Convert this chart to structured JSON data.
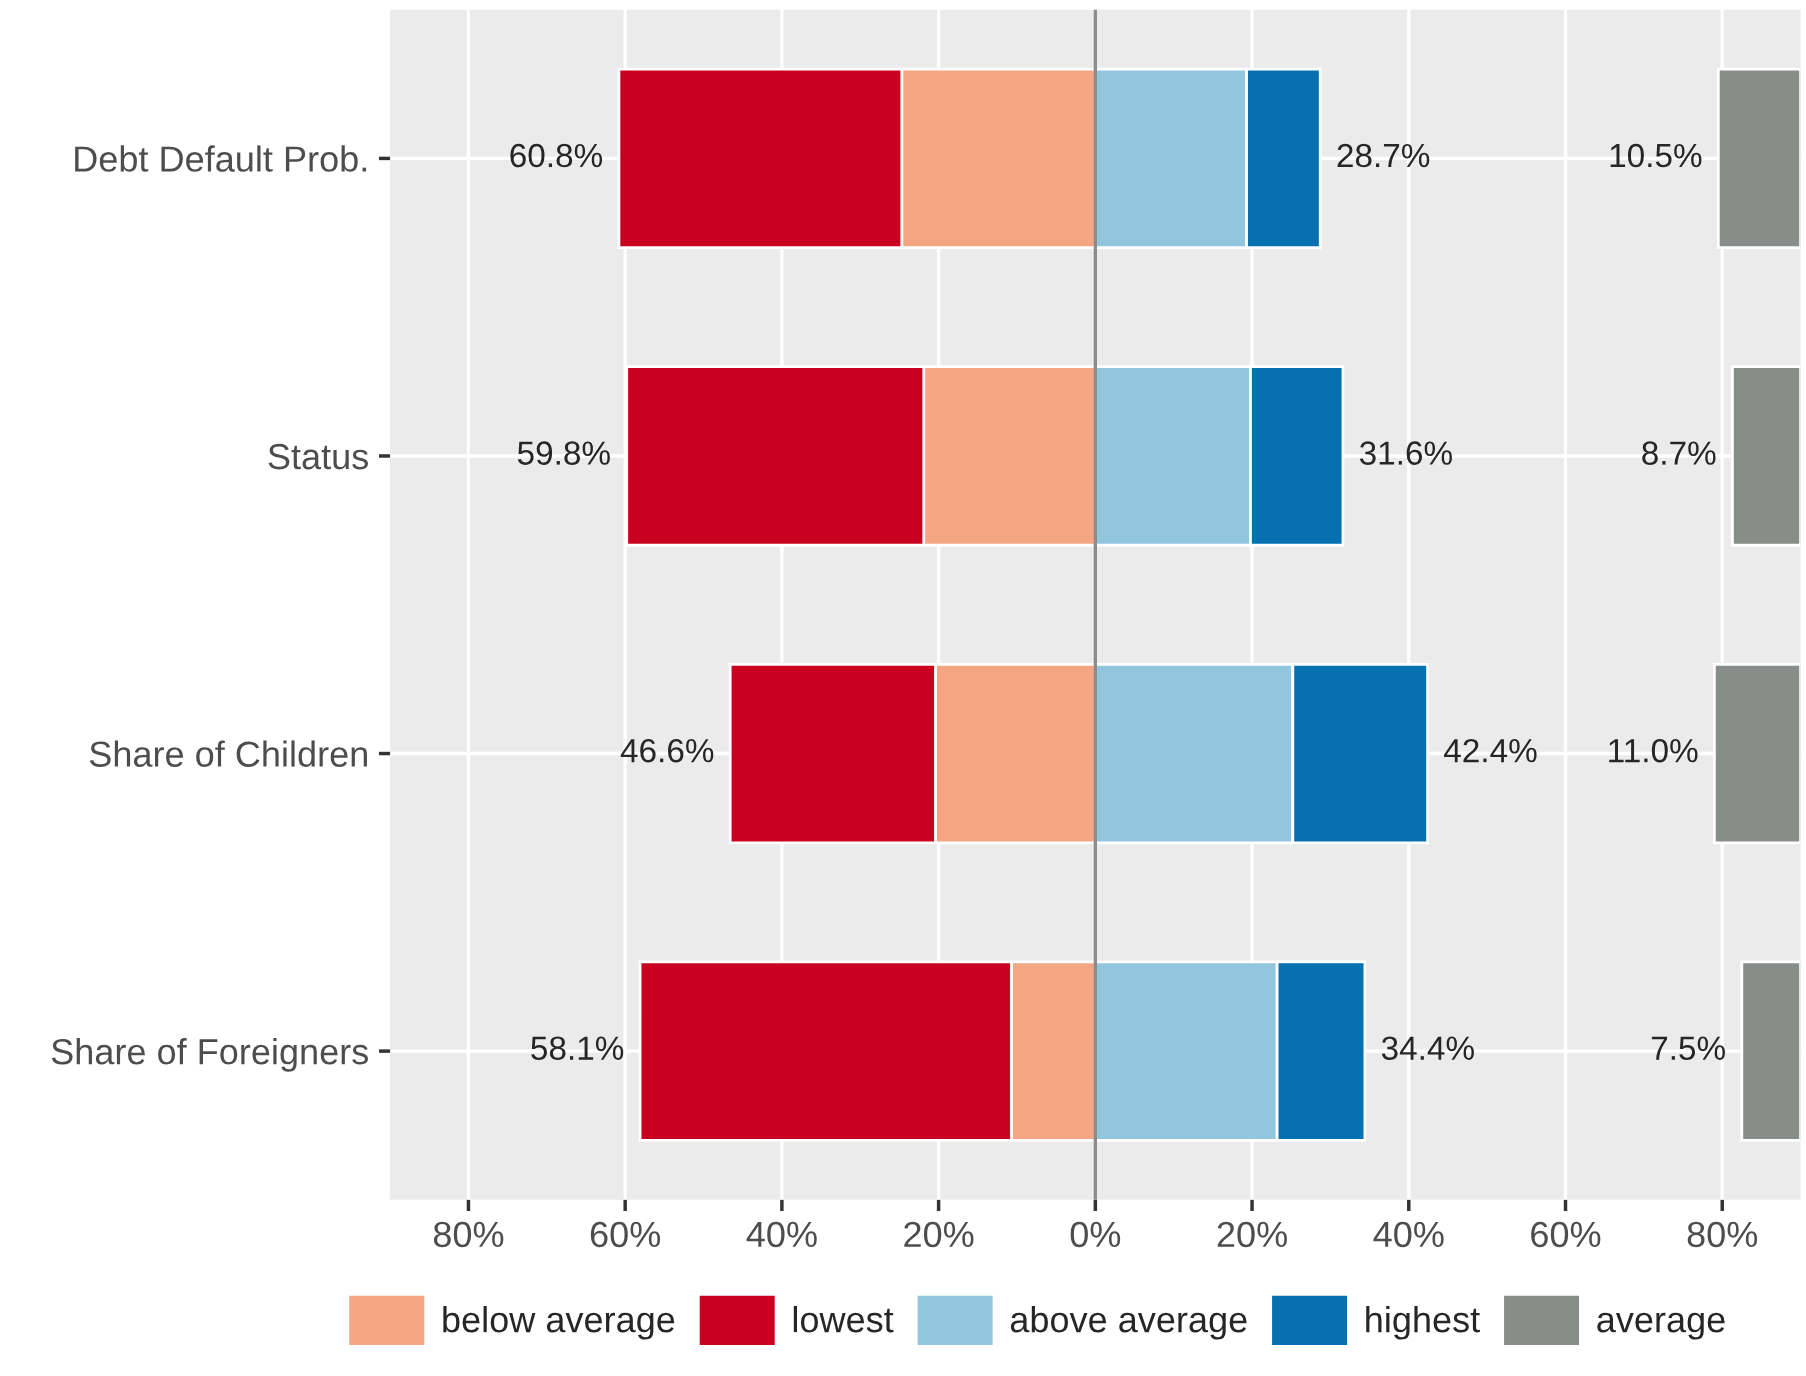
{
  "chart_data": [
    {
      "type": "bar",
      "orientation": "horizontal",
      "stacked": true,
      "categories": [
        "Debt Default Prob.",
        "Status",
        "Share of Children",
        "Share of Foreigners"
      ],
      "series": [
        {
          "name": "below average",
          "color": "#f4a582",
          "values": [
            -24.7,
            -21.9,
            -20.4,
            -10.7
          ]
        },
        {
          "name": "lowest",
          "color": "#ca0020",
          "values": [
            -36.1,
            -37.9,
            -26.2,
            -47.4
          ]
        },
        {
          "name": "above average",
          "color": "#92c5de",
          "values": [
            19.3,
            19.8,
            25.2,
            23.2
          ]
        },
        {
          "name": "highest",
          "color": "#0571b0",
          "values": [
            9.4,
            11.8,
            17.2,
            11.2
          ]
        }
      ],
      "xlim": [
        -90,
        90
      ],
      "xticks": [
        {
          "value": -80,
          "label": "80%"
        },
        {
          "value": -60,
          "label": "60%"
        },
        {
          "value": -40,
          "label": "40%"
        },
        {
          "value": -20,
          "label": "20%"
        },
        {
          "value": 0,
          "label": "0%"
        },
        {
          "value": 20,
          "label": "20%"
        },
        {
          "value": 40,
          "label": "40%"
        },
        {
          "value": 60,
          "label": "60%"
        },
        {
          "value": 80,
          "label": "80%"
        }
      ],
      "ref_lines": [
        {
          "axis": "x",
          "value": 0,
          "color": "#8c8c8c"
        }
      ],
      "annotations": [
        {
          "text": "60.8%",
          "x": -60.8,
          "y": "Debt Default Prob."
        },
        {
          "text": "59.8%",
          "x": -59.8,
          "y": "Status"
        },
        {
          "text": "46.6%",
          "x": -46.6,
          "y": "Share of Children"
        },
        {
          "text": "58.1%",
          "x": -58.1,
          "y": "Share of Foreigners"
        },
        {
          "text": "28.7%",
          "x": 28.7,
          "y": "Debt Default Prob."
        },
        {
          "text": "31.6%",
          "x": 31.6,
          "y": "Status"
        },
        {
          "text": "42.4%",
          "x": 42.4,
          "y": "Share of Children"
        },
        {
          "text": "34.4%",
          "x": 34.4,
          "y": "Share of Foreigners"
        }
      ],
      "grid": true,
      "legend": "bottom"
    },
    {
      "type": "bar",
      "orientation": "horizontal",
      "categories": [
        "Debt Default Prob.",
        "Status",
        "Share of Children",
        "Share of Foreigners"
      ],
      "series": [
        {
          "name": "average",
          "color": "#878e8a",
          "values": [
            10.5,
            8.7,
            11.0,
            7.5
          ],
          "base": [
            79.5,
            81.3,
            79.0,
            82.5
          ]
        }
      ],
      "xlim": [
        -90,
        90
      ],
      "tick_labels": false,
      "annotations": [
        {
          "text": "10.5%",
          "x": 79.5,
          "y": "Debt Default Prob."
        },
        {
          "text": "8.7%",
          "x": 81.3,
          "y": "Status"
        },
        {
          "text": "11.0%",
          "x": 79.0,
          "y": "Share of Children"
        },
        {
          "text": "7.5%",
          "x": 82.5,
          "y": "Share of Foreigners"
        }
      ],
      "legend": "bottom"
    }
  ]
}
